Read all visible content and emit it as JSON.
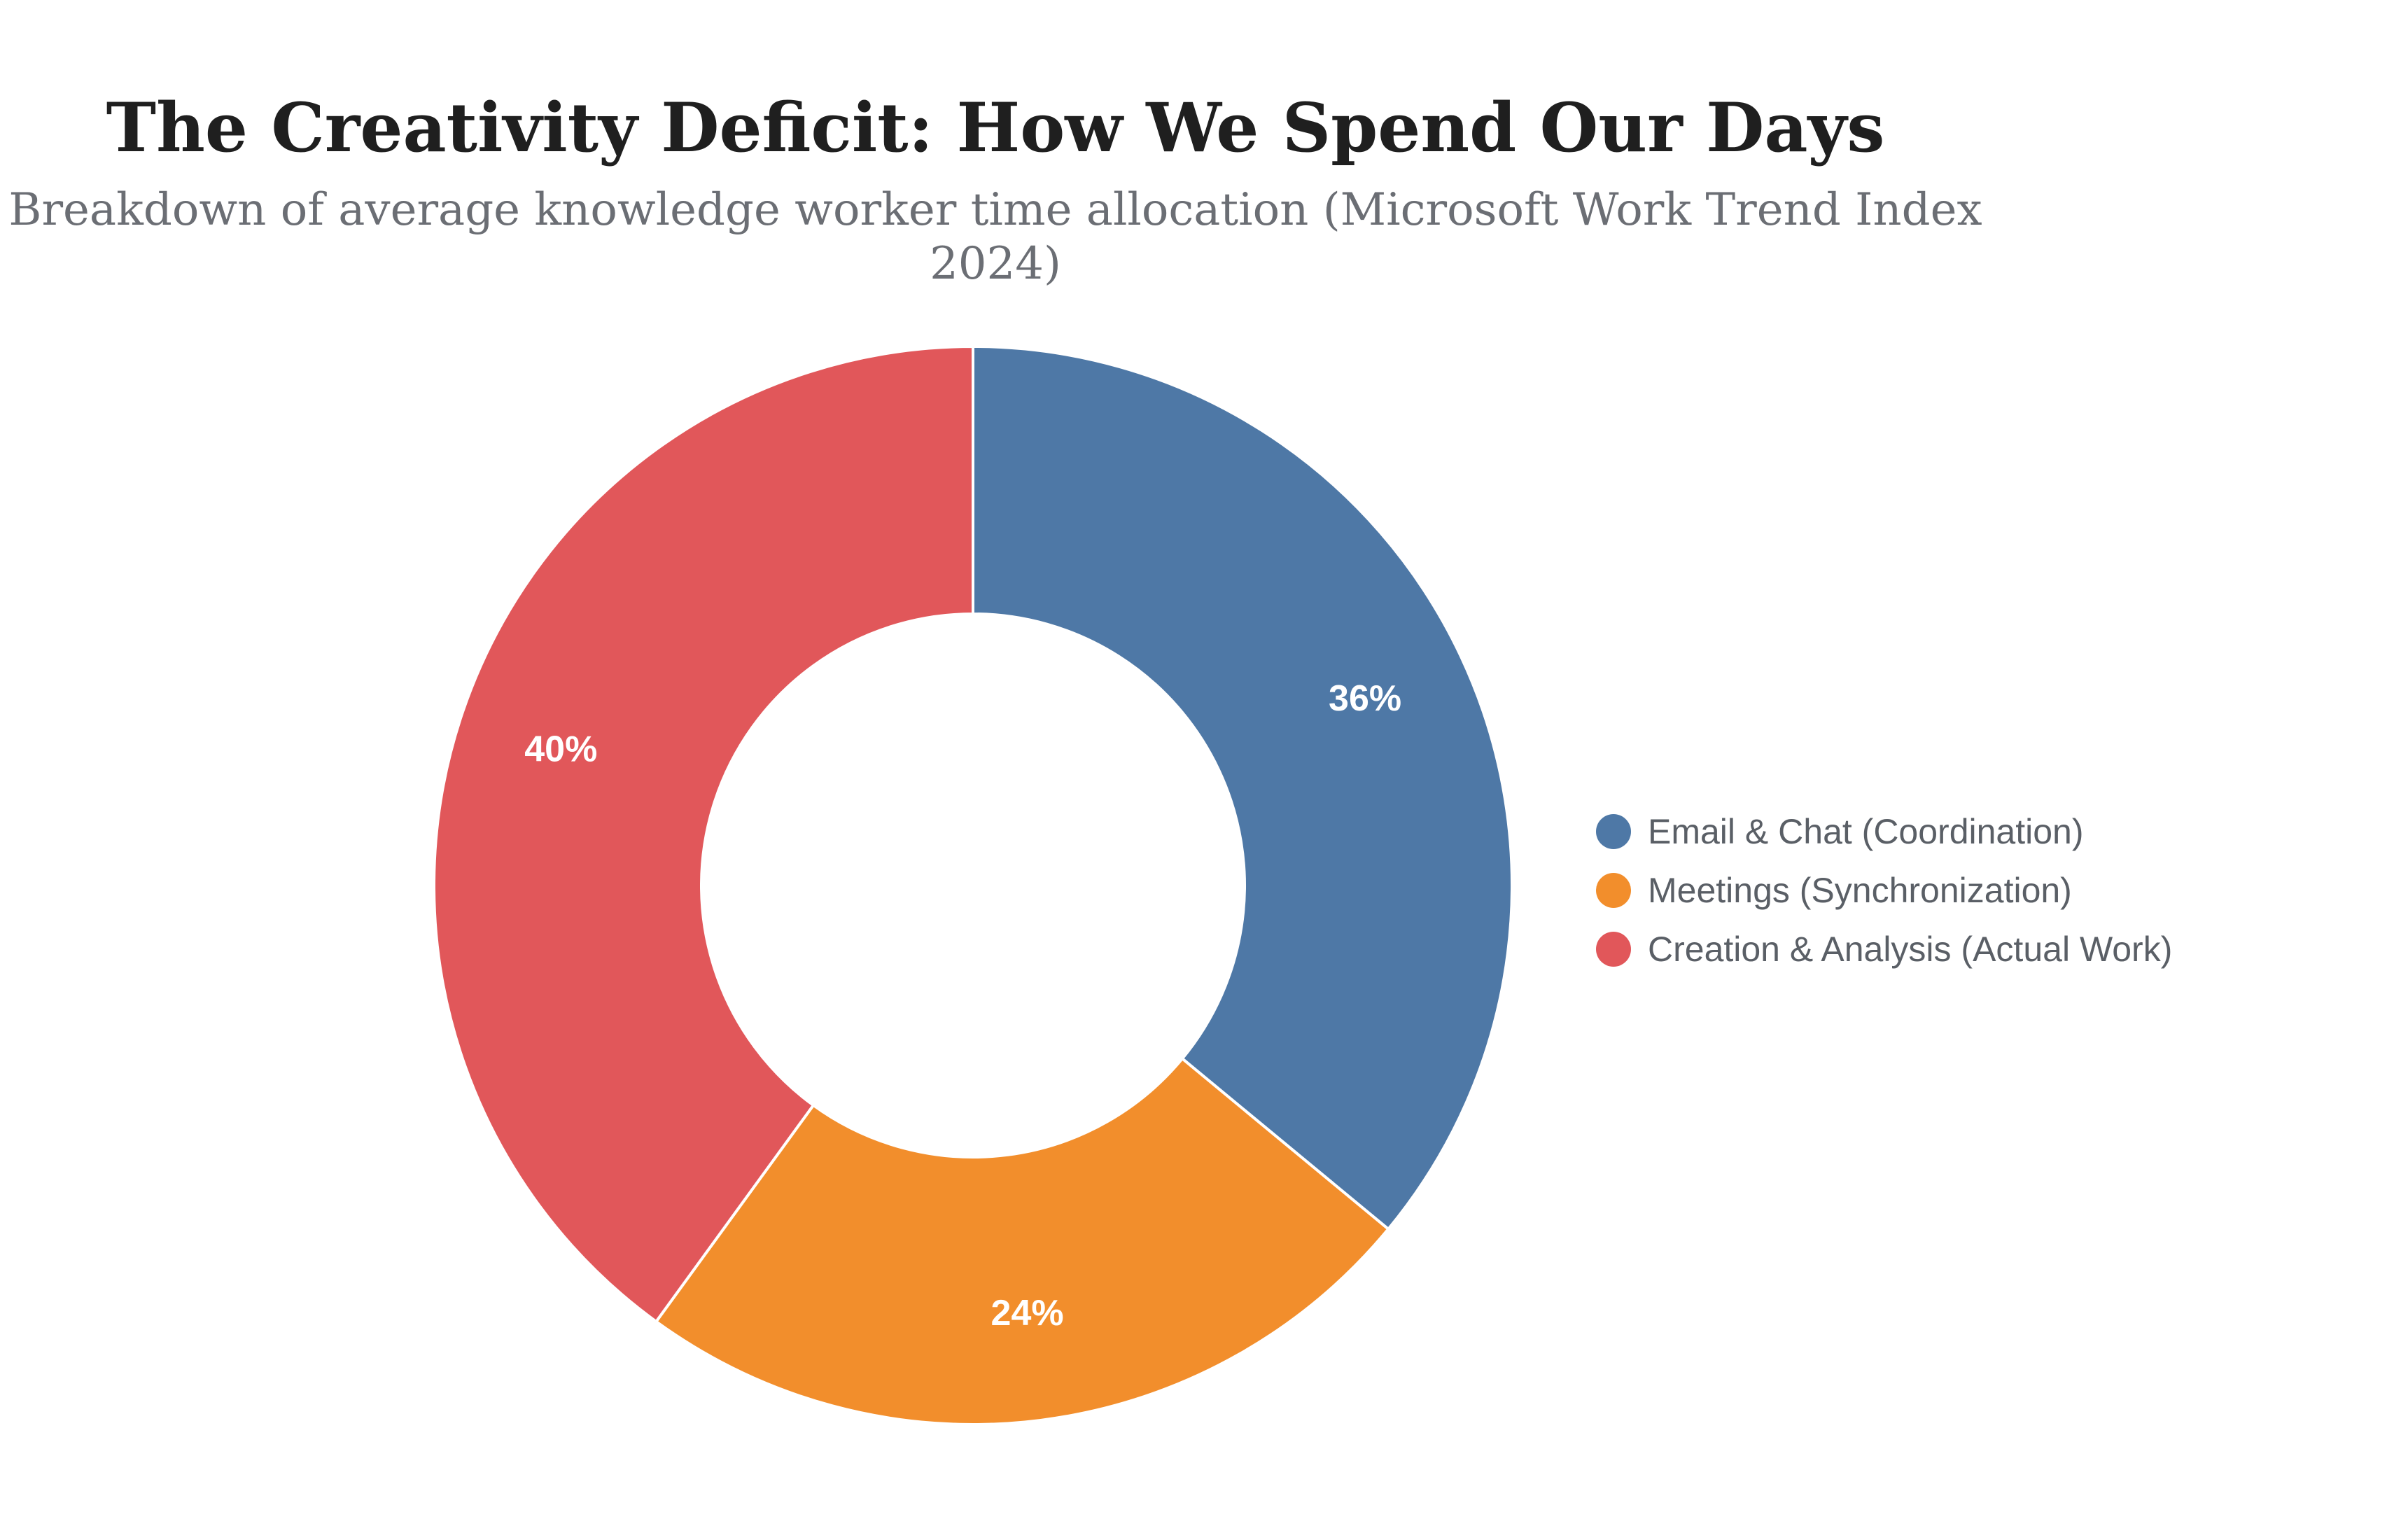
{
  "chart_data": {
    "type": "pie",
    "title": "The Creativity Deficit: How We Spend Our Days",
    "subtitle": "Breakdown of average knowledge worker time allocation (Microsoft Work Trend Index 2024)",
    "donut": true,
    "start_angle": "top",
    "direction": "clockwise",
    "legend_position": "right",
    "value_unit": "%",
    "slices": [
      {
        "label": "Email & Chat (Coordination)",
        "value": 36,
        "display": "36%",
        "color": "#4e78a6"
      },
      {
        "label": "Meetings (Synchronization)",
        "value": 24,
        "display": "24%",
        "color": "#f28e2c"
      },
      {
        "label": "Creation & Analysis (Actual Work)",
        "value": 40,
        "display": "40%",
        "color": "#e1575a"
      }
    ]
  }
}
